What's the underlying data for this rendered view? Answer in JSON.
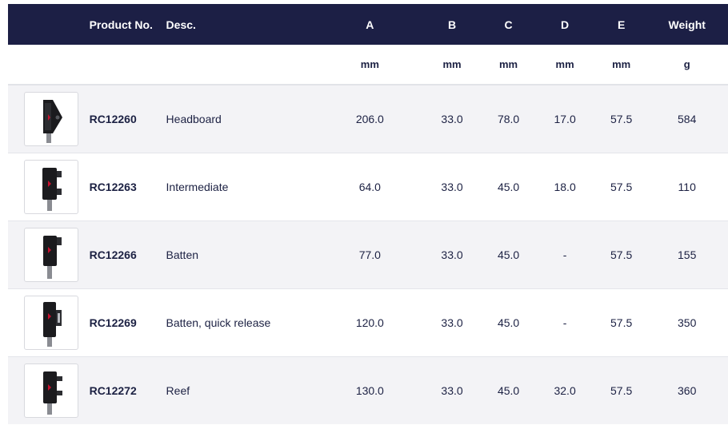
{
  "headers": {
    "image": "",
    "product_no": "Product No.",
    "desc": "Desc.",
    "a": "A",
    "b": "B",
    "c": "C",
    "d": "D",
    "e": "E",
    "weight": "Weight"
  },
  "units": {
    "a": "mm",
    "b": "mm",
    "c": "mm",
    "d": "mm",
    "e": "mm",
    "weight": "g"
  },
  "rows": [
    {
      "product_no": "RC12260",
      "desc": "Headboard",
      "a": "206.0",
      "b": "33.0",
      "c": "78.0",
      "d": "17.0",
      "e": "57.5",
      "weight": "584",
      "icon": "headboard-car-icon"
    },
    {
      "product_no": "RC12263",
      "desc": "Intermediate",
      "a": "64.0",
      "b": "33.0",
      "c": "45.0",
      "d": "18.0",
      "e": "57.5",
      "weight": "110",
      "icon": "intermediate-car-icon"
    },
    {
      "product_no": "RC12266",
      "desc": "Batten",
      "a": "77.0",
      "b": "33.0",
      "c": "45.0",
      "d": "-",
      "e": "57.5",
      "weight": "155",
      "icon": "batten-car-icon"
    },
    {
      "product_no": "RC12269",
      "desc": "Batten, quick release",
      "a": "120.0",
      "b": "33.0",
      "c": "45.0",
      "d": "-",
      "e": "57.5",
      "weight": "350",
      "icon": "batten-quick-release-car-icon"
    },
    {
      "product_no": "RC12272",
      "desc": "Reef",
      "a": "130.0",
      "b": "33.0",
      "c": "45.0",
      "d": "32.0",
      "e": "57.5",
      "weight": "360",
      "icon": "reef-car-icon"
    }
  ],
  "colors": {
    "header_bg": "#1c1f45",
    "text": "#1c2143",
    "alt_row_bg": "#f3f3f6",
    "accent": "#c8102e"
  }
}
